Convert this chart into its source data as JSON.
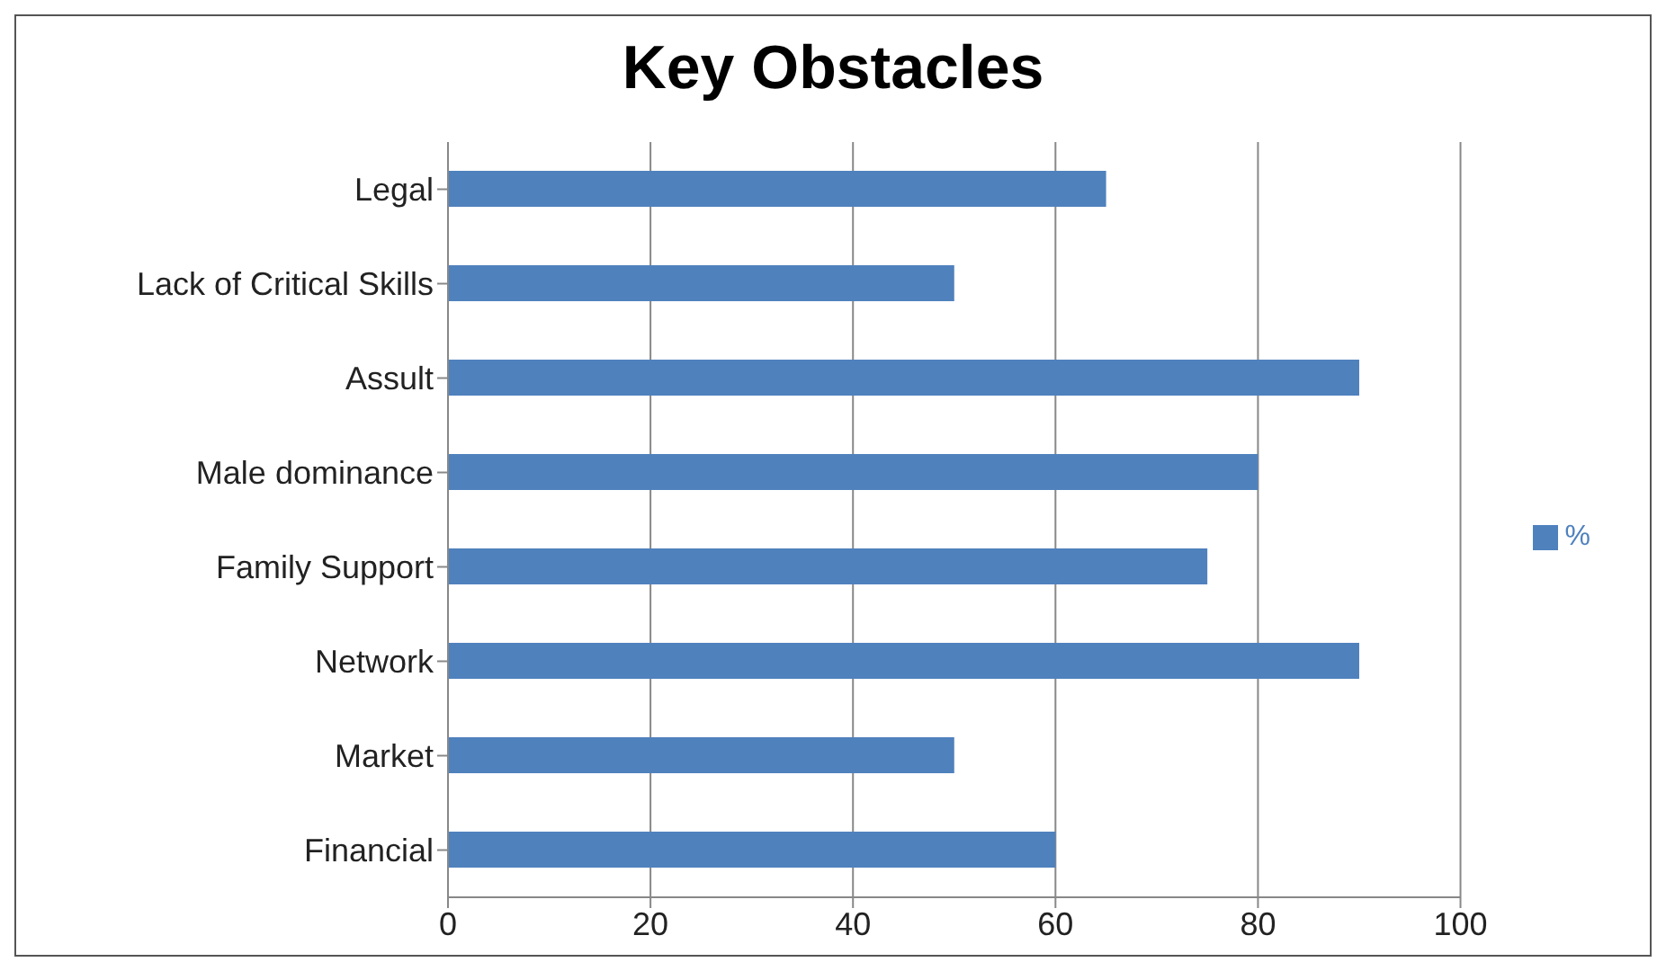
{
  "chart_data": {
    "type": "bar",
    "orientation": "horizontal",
    "title": "Key Obstacles",
    "categories": [
      "Legal",
      "Lack of Critical Skills",
      "Assult",
      "Male dominance",
      "Family Support",
      "Network",
      "Market",
      "Financial"
    ],
    "series": [
      {
        "name": "%",
        "color": "#4f81bd",
        "values": [
          65,
          50,
          90,
          80,
          75,
          90,
          50,
          60
        ]
      }
    ],
    "xlim": [
      0,
      100
    ],
    "xticks": [
      0,
      20,
      40,
      60,
      80,
      100
    ],
    "grid": "x",
    "legend": "right"
  }
}
